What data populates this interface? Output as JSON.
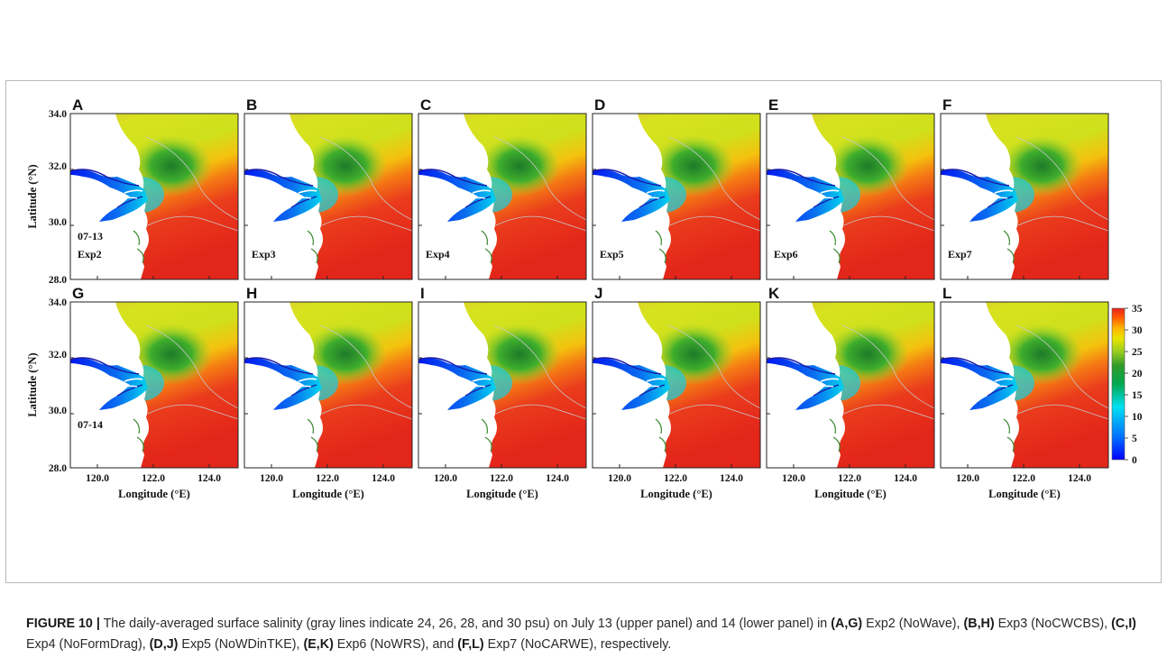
{
  "figure": {
    "panels": [
      {
        "letter": "A",
        "date": "07-13",
        "exp": "Exp2"
      },
      {
        "letter": "B",
        "date": "",
        "exp": "Exp3"
      },
      {
        "letter": "C",
        "date": "",
        "exp": "Exp4"
      },
      {
        "letter": "D",
        "date": "",
        "exp": "Exp5"
      },
      {
        "letter": "E",
        "date": "",
        "exp": "Exp6"
      },
      {
        "letter": "F",
        "date": "",
        "exp": "Exp7"
      },
      {
        "letter": "G",
        "date": "07-14",
        "exp": ""
      },
      {
        "letter": "H",
        "date": "",
        "exp": ""
      },
      {
        "letter": "I",
        "date": "",
        "exp": ""
      },
      {
        "letter": "J",
        "date": "",
        "exp": ""
      },
      {
        "letter": "K",
        "date": "",
        "exp": ""
      },
      {
        "letter": "L",
        "date": "",
        "exp": ""
      }
    ],
    "lat_ticks": [
      "34.0",
      "32.0",
      "30.0",
      "28.0"
    ],
    "lon_ticks": [
      "120.0",
      "122.0",
      "124.0"
    ],
    "lat_title": "Latitude (°N)",
    "lon_title": "Longitude (°E)",
    "colorbar": {
      "ticks": [
        "35",
        "30",
        "25",
        "20",
        "15",
        "10",
        "5",
        "0"
      ],
      "stops": [
        "#0000ff",
        "#0090ff",
        "#00e5ff",
        "#00c060",
        "#1f8a2a",
        "#7fc520",
        "#e6e600",
        "#ffb000",
        "#ff5a00",
        "#e8221c"
      ]
    },
    "colors": {
      "land": "#ffffff",
      "river": "#1a1aa8",
      "sea_south": "#e8321e",
      "sea_north": "#d6e21a"
    }
  },
  "caption": {
    "figure_label": "FIGURE 10 |",
    "t1": " The daily-averaged surface salinity (gray lines indicate 24, 26, 28, and 30 psu) on July 13 (upper panel) and 14 (lower panel) in ",
    "b1": "(A,G)",
    "t2": " Exp2 (NoWave), ",
    "b2": "(B,H)",
    "t3": " Exp3 (NoCWCBS), ",
    "b3": "(C,I)",
    "t4": " Exp4 (NoFormDrag), ",
    "b4": "(D,J)",
    "t5": " Exp5 (NoWDinTKE), ",
    "b5": "(E,K)",
    "t6": " Exp6 (NoWRS), and ",
    "b6": "(F,L)",
    "t7": " Exp7 (NoCARWE), respectively."
  }
}
